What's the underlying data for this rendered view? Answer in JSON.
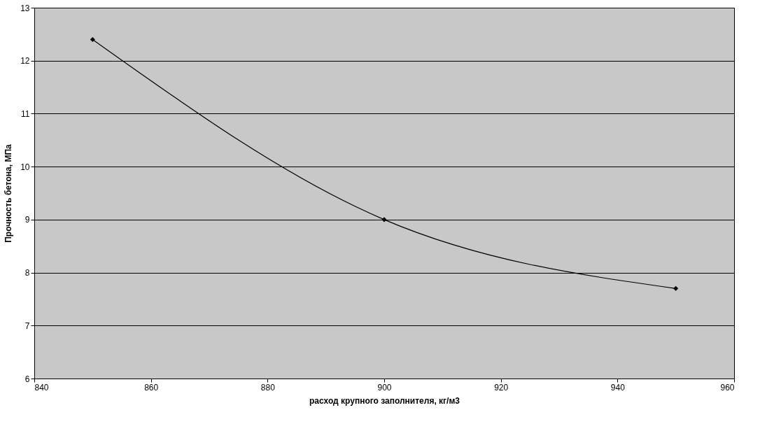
{
  "chart_data": {
    "type": "line",
    "xlabel": "расход крупного заполнителя, кг/м3",
    "ylabel": "Прочность бетона, МПа",
    "x": [
      850,
      900,
      950
    ],
    "series": [
      {
        "color": "#000000",
        "values": [
          12.4,
          9.0,
          7.7
        ]
      }
    ],
    "xlim": [
      840,
      960
    ],
    "xticks": [
      840,
      860,
      880,
      900,
      920,
      940,
      960
    ],
    "ylim": [
      6,
      13
    ],
    "yticks": [
      6,
      7,
      8,
      9,
      10,
      11,
      12,
      13
    ],
    "grid": "y",
    "marker": "diamond",
    "line_style": "solid",
    "legend": false
  }
}
